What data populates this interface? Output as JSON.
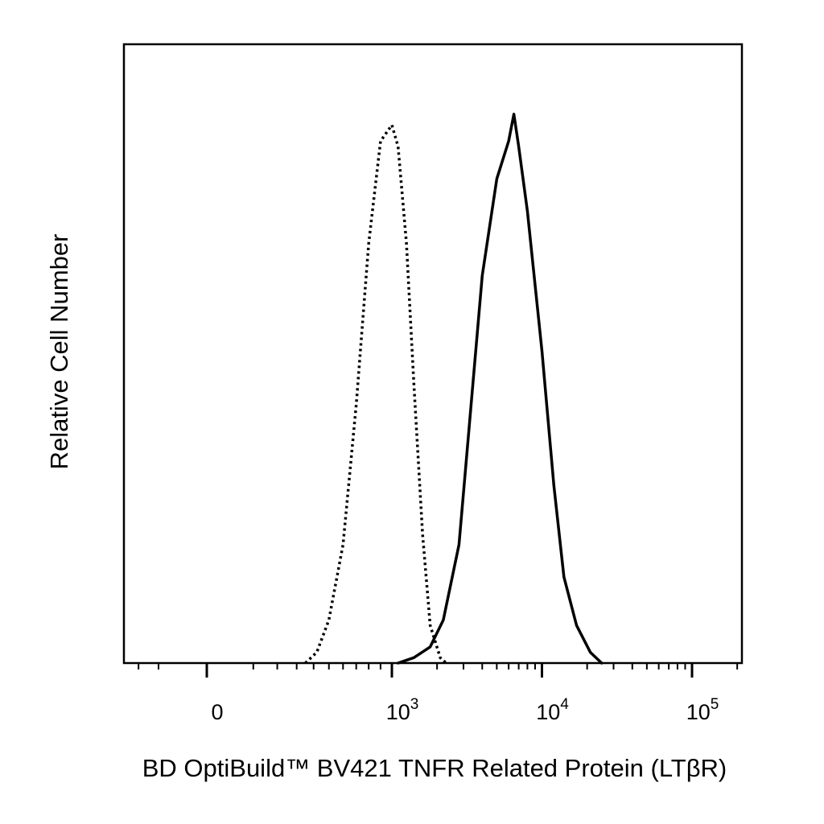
{
  "chart_data": {
    "type": "line",
    "title": "",
    "xlabel": "BD OptiBuild™ BV421 TNFR Related Protein (LTβR)",
    "ylabel": "Relative Cell Number",
    "x_scale": "biexponential",
    "xlim": [
      -400,
      200000
    ],
    "ylim": [
      0,
      1.15
    ],
    "xticks": [
      {
        "value": 0,
        "base": "0",
        "exp": ""
      },
      {
        "value": 1000,
        "base": "10",
        "exp": "3"
      },
      {
        "value": 10000,
        "base": "10",
        "exp": "4"
      },
      {
        "value": 100000,
        "base": "10",
        "exp": "5"
      }
    ],
    "grid": false,
    "legend": "none",
    "series": [
      {
        "style": "dotted",
        "color": "#000000",
        "points": [
          [
            350,
            0
          ],
          [
            420,
            0.02
          ],
          [
            500,
            0.08
          ],
          [
            600,
            0.22
          ],
          [
            700,
            0.48
          ],
          [
            800,
            0.78
          ],
          [
            900,
            0.97
          ],
          [
            1000,
            1.0
          ],
          [
            1100,
            0.96
          ],
          [
            1250,
            0.78
          ],
          [
            1400,
            0.52
          ],
          [
            1600,
            0.24
          ],
          [
            1800,
            0.07
          ],
          [
            2100,
            0.01
          ],
          [
            2300,
            0
          ]
        ]
      },
      {
        "style": "solid",
        "color": "#000000",
        "points": [
          [
            1100,
            0
          ],
          [
            1400,
            0.01
          ],
          [
            1800,
            0.03
          ],
          [
            2200,
            0.08
          ],
          [
            2800,
            0.22
          ],
          [
            3300,
            0.45
          ],
          [
            4000,
            0.72
          ],
          [
            5000,
            0.9
          ],
          [
            6000,
            0.97
          ],
          [
            6500,
            1.02
          ],
          [
            7000,
            0.96
          ],
          [
            8000,
            0.84
          ],
          [
            10000,
            0.58
          ],
          [
            12000,
            0.33
          ],
          [
            14000,
            0.16
          ],
          [
            17000,
            0.07
          ],
          [
            21000,
            0.02
          ],
          [
            25000,
            0
          ]
        ]
      }
    ]
  }
}
